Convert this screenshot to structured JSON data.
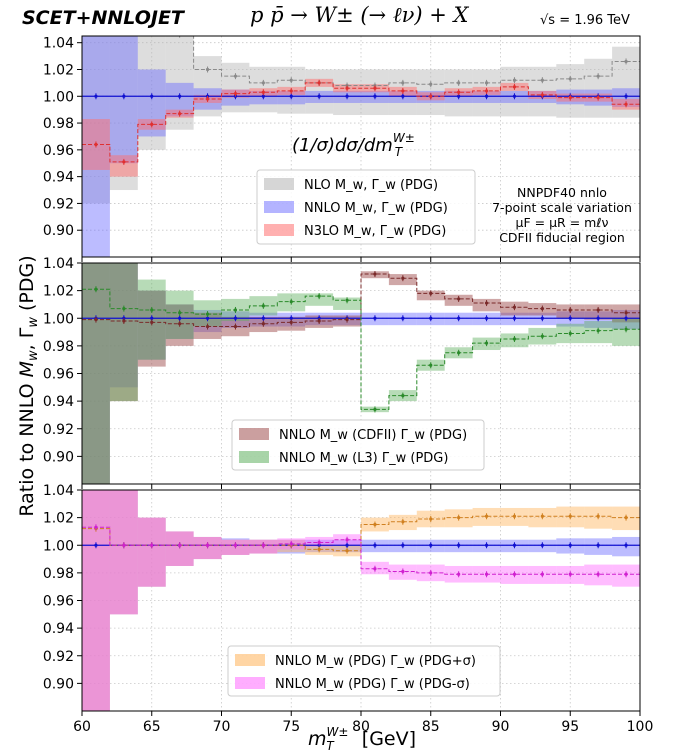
{
  "header": {
    "brand": "SCET+NNLOJET",
    "process": "p p̄ → W± (→ ℓν) + X",
    "energy": "√s = 1.96 TeV"
  },
  "colors": {
    "nlo": "#b4b4b4",
    "nnlo": "#6a6aff",
    "n3lo": "#ff7070",
    "cdf": "#a05050",
    "l3": "#60b060",
    "plus": "#ffb35a",
    "minus": "#ff6aff",
    "nnlo_line": "#1010d0"
  },
  "chart_data": [
    {
      "type": "line",
      "panel": "top",
      "title": "(1/σ)dσ/dm_T^W±",
      "xlim": [
        60,
        100
      ],
      "ylim": [
        0.88,
        1.045
      ],
      "yticks": [
        "0.90",
        "0.92",
        "0.94",
        "0.96",
        "0.98",
        "1.00",
        "1.02",
        "1.04"
      ],
      "grid": true,
      "legend_placement": "lower-center",
      "annotations": [
        "NNPDF40 nnlo",
        "7-point scale variation",
        "μF = μR = mℓν",
        "CDFII fiducial region"
      ],
      "bin_edges": [
        60,
        62,
        64,
        66,
        68,
        70,
        72,
        74,
        76,
        78,
        80,
        82,
        84,
        86,
        88,
        90,
        92,
        94,
        96,
        98,
        100
      ],
      "series": [
        {
          "name": "NLO M_w, Γ_w (PDG)",
          "central": [
            1.2,
            1.1,
            1.07,
            1.046,
            1.02,
            1.015,
            1.01,
            1.012,
            1.01,
            1.008,
            1.008,
            1.01,
            1.009,
            1.01,
            1.01,
            1.012,
            1.012,
            1.013,
            1.015,
            1.026
          ],
          "lo": [
            0.92,
            0.93,
            0.96,
            0.975,
            0.985,
            0.988,
            0.988,
            0.987,
            0.987,
            0.986,
            0.986,
            0.986,
            0.986,
            0.985,
            0.985,
            0.985,
            0.985,
            0.984,
            0.984,
            0.984
          ],
          "hi": [
            1.3,
            1.2,
            1.1,
            1.05,
            1.03,
            1.025,
            1.022,
            1.022,
            1.02,
            1.02,
            1.02,
            1.02,
            1.02,
            1.02,
            1.02,
            1.022,
            1.022,
            1.024,
            1.028,
            1.037
          ]
        },
        {
          "name": "NNLO M_w, Γ_w (PDG)",
          "central": [
            1.0,
            1.0,
            1.0,
            1.0,
            1.0,
            1.0,
            1.0,
            1.0,
            1.0,
            1.0,
            1.0,
            1.0,
            1.0,
            1.0,
            1.0,
            1.0,
            1.0,
            1.0,
            1.0,
            1.0
          ],
          "lo": [
            0.85,
            0.95,
            0.97,
            0.985,
            0.99,
            0.993,
            0.994,
            0.994,
            0.995,
            0.995,
            0.995,
            0.995,
            0.995,
            0.995,
            0.995,
            0.995,
            0.995,
            0.994,
            0.993,
            0.992
          ],
          "hi": [
            1.2,
            1.045,
            1.02,
            1.01,
            1.006,
            1.005,
            1.004,
            1.004,
            1.004,
            1.004,
            1.004,
            1.004,
            1.004,
            1.004,
            1.004,
            1.004,
            1.004,
            1.005,
            1.005,
            1.006
          ]
        },
        {
          "name": "N3LO M_w, Γ_w (PDG)",
          "central": [
            0.964,
            0.951,
            0.979,
            0.987,
            0.998,
            1.002,
            1.003,
            1.004,
            1.01,
            1.006,
            1.006,
            1.004,
            1.0,
            1.003,
            1.004,
            1.007,
            1.001,
            0.999,
            0.999,
            0.994
          ],
          "lo": [
            0.945,
            0.94,
            0.975,
            0.984,
            0.995,
            0.999,
            1.0,
            1.001,
            1.007,
            1.003,
            1.003,
            1.0,
            0.997,
            1.0,
            1.001,
            1.004,
            0.998,
            0.996,
            0.996,
            0.99
          ],
          "hi": [
            0.983,
            0.956,
            0.983,
            0.99,
            1.001,
            1.005,
            1.006,
            1.007,
            1.013,
            1.009,
            1.009,
            1.007,
            1.003,
            1.006,
            1.007,
            1.01,
            1.004,
            1.002,
            1.002,
            0.998
          ]
        }
      ]
    },
    {
      "type": "line",
      "panel": "middle",
      "xlim": [
        60,
        100
      ],
      "ylim": [
        0.88,
        1.04
      ],
      "yticks": [
        "0.90",
        "0.92",
        "0.94",
        "0.96",
        "0.98",
        "1.00",
        "1.02",
        "1.04"
      ],
      "grid": true,
      "legend_placement": "lower-center",
      "bin_edges": [
        60,
        62,
        64,
        66,
        68,
        70,
        72,
        74,
        76,
        78,
        80,
        82,
        84,
        86,
        88,
        90,
        92,
        94,
        96,
        98,
        100
      ],
      "series": [
        {
          "name": "NNLO M_w (CDFII) Γ_w (PDG)",
          "central": [
            0.999,
            0.998,
            0.997,
            0.996,
            0.994,
            0.994,
            0.996,
            0.997,
            0.998,
            0.999,
            1.032,
            1.029,
            1.018,
            1.014,
            1.011,
            1.008,
            1.007,
            1.006,
            1.006,
            1.004
          ],
          "lo": [
            0.85,
            0.94,
            0.965,
            0.98,
            0.985,
            0.987,
            0.99,
            0.991,
            0.993,
            0.994,
            1.029,
            1.024,
            1.013,
            1.009,
            1.005,
            1.002,
            1.002,
            1.0,
            0.999,
            0.997
          ],
          "hi": [
            1.2,
            1.045,
            1.02,
            1.01,
            1.004,
            1.001,
            1.001,
            1.001,
            1.002,
            1.002,
            1.034,
            1.032,
            1.02,
            1.017,
            1.014,
            1.012,
            1.011,
            1.01,
            1.01,
            1.01
          ]
        },
        {
          "name": "NNLO M_w (L3) Γ_w (PDG)",
          "central": [
            1.021,
            1.007,
            1.006,
            1.004,
            1.003,
            1.006,
            1.009,
            1.012,
            1.016,
            1.013,
            0.934,
            0.944,
            0.966,
            0.975,
            0.982,
            0.985,
            0.987,
            0.989,
            0.991,
            0.992
          ],
          "lo": [
            0.85,
            0.94,
            0.97,
            0.985,
            0.994,
            0.998,
            1.002,
            1.005,
            1.009,
            1.006,
            0.932,
            0.94,
            0.962,
            0.971,
            0.977,
            0.979,
            0.981,
            0.982,
            0.982,
            0.98
          ],
          "hi": [
            1.2,
            1.045,
            1.028,
            1.02,
            1.013,
            1.014,
            1.016,
            1.018,
            1.018,
            1.015,
            0.936,
            0.948,
            0.97,
            0.979,
            0.986,
            0.989,
            0.993,
            0.996,
            0.998,
            1.0
          ]
        },
        {
          "name": "NNLO M_w, Γ_w (PDG)",
          "central": [
            1.0,
            1.0,
            1.0,
            1.0,
            1.0,
            1.0,
            1.0,
            1.0,
            1.0,
            1.0,
            1.0,
            1.0,
            1.0,
            1.0,
            1.0,
            1.0,
            1.0,
            1.0,
            1.0,
            1.0
          ],
          "lo": [
            0.85,
            0.95,
            0.97,
            0.985,
            0.99,
            0.993,
            0.994,
            0.994,
            0.995,
            0.995,
            0.995,
            0.995,
            0.995,
            0.995,
            0.995,
            0.995,
            0.995,
            0.994,
            0.993,
            0.992
          ],
          "hi": [
            1.2,
            1.045,
            1.02,
            1.01,
            1.006,
            1.005,
            1.004,
            1.004,
            1.004,
            1.004,
            1.004,
            1.004,
            1.004,
            1.004,
            1.004,
            1.004,
            1.004,
            1.005,
            1.005,
            1.006
          ]
        }
      ]
    },
    {
      "type": "line",
      "panel": "bottom",
      "xlim": [
        60,
        100
      ],
      "ylim": [
        0.88,
        1.04
      ],
      "yticks": [
        "0.90",
        "0.92",
        "0.94",
        "0.96",
        "0.98",
        "1.00",
        "1.02",
        "1.04"
      ],
      "xticks": [
        "60",
        "65",
        "70",
        "75",
        "80",
        "85",
        "90",
        "95",
        "100"
      ],
      "xlabel": "m_T^W± [GeV]",
      "grid": true,
      "legend_placement": "lower-center",
      "bin_edges": [
        60,
        62,
        64,
        66,
        68,
        70,
        72,
        74,
        76,
        78,
        80,
        82,
        84,
        86,
        88,
        90,
        92,
        94,
        96,
        98,
        100
      ],
      "series": [
        {
          "name": "NNLO M_w (PDG) Γ_w (PDG+σ)",
          "central": [
            1.012,
            1.0,
            1.0,
            1.0,
            1.0,
            1.0,
            1.0,
            1.0,
            0.997,
            0.996,
            1.015,
            1.017,
            1.019,
            1.02,
            1.021,
            1.021,
            1.021,
            1.021,
            1.021,
            1.02
          ],
          "lo": [
            0.85,
            0.95,
            0.97,
            0.985,
            0.99,
            0.993,
            0.994,
            0.995,
            0.993,
            0.992,
            1.01,
            1.011,
            1.013,
            1.013,
            1.014,
            1.014,
            1.013,
            1.013,
            1.012,
            1.011
          ],
          "hi": [
            1.2,
            1.045,
            1.02,
            1.01,
            1.006,
            1.004,
            1.004,
            1.004,
            1.001,
            1.0,
            1.02,
            1.022,
            1.025,
            1.026,
            1.027,
            1.027,
            1.027,
            1.028,
            1.028,
            1.028
          ]
        },
        {
          "name": "NNLO M_w (PDG) Γ_w (PDG-σ)",
          "central": [
            1.013,
            1.0,
            1.0,
            1.0,
            1.0,
            1.0,
            1.0,
            1.001,
            1.002,
            1.004,
            0.983,
            0.981,
            0.98,
            0.979,
            0.979,
            0.979,
            0.979,
            0.979,
            0.979,
            0.979
          ],
          "lo": [
            0.85,
            0.95,
            0.97,
            0.985,
            0.99,
            0.993,
            0.994,
            0.997,
            0.999,
            1.0,
            0.979,
            0.975,
            0.974,
            0.973,
            0.973,
            0.972,
            0.972,
            0.972,
            0.971,
            0.97
          ],
          "hi": [
            1.2,
            1.045,
            1.02,
            1.01,
            1.006,
            1.004,
            1.004,
            1.005,
            1.006,
            1.008,
            0.988,
            0.986,
            0.986,
            0.985,
            0.985,
            0.985,
            0.985,
            0.985,
            0.986,
            0.986
          ]
        },
        {
          "name": "NNLO M_w, Γ_w (PDG)",
          "central": [
            1.0,
            1.0,
            1.0,
            1.0,
            1.0,
            1.0,
            1.0,
            1.0,
            1.0,
            1.0,
            1.0,
            1.0,
            1.0,
            1.0,
            1.0,
            1.0,
            1.0,
            1.0,
            1.0,
            1.0
          ],
          "lo": [
            0.85,
            0.95,
            0.97,
            0.985,
            0.99,
            0.993,
            0.994,
            0.994,
            0.995,
            0.995,
            0.995,
            0.995,
            0.995,
            0.995,
            0.995,
            0.995,
            0.995,
            0.994,
            0.993,
            0.992
          ],
          "hi": [
            1.2,
            1.045,
            1.02,
            1.01,
            1.006,
            1.005,
            1.004,
            1.004,
            1.004,
            1.004,
            1.004,
            1.004,
            1.004,
            1.004,
            1.004,
            1.004,
            1.004,
            1.005,
            1.005,
            1.006
          ]
        }
      ]
    }
  ],
  "axes": {
    "ylabel": "Ratio to NNLO M_w, Γ_w (PDG)",
    "xlabel": "m_T^W± [GeV]"
  }
}
